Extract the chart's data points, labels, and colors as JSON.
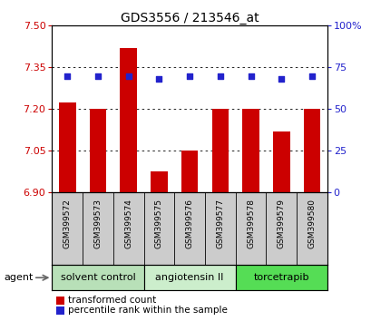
{
  "title": "GDS3556 / 213546_at",
  "samples": [
    "GSM399572",
    "GSM399573",
    "GSM399574",
    "GSM399575",
    "GSM399576",
    "GSM399577",
    "GSM399578",
    "GSM399579",
    "GSM399580"
  ],
  "transformed_counts": [
    7.225,
    7.2,
    7.42,
    6.975,
    7.05,
    7.2,
    7.2,
    7.12,
    7.2
  ],
  "percentile_ranks": [
    70,
    70,
    70,
    68,
    70,
    70,
    70,
    68,
    70
  ],
  "ylim": [
    6.9,
    7.5
  ],
  "yticks": [
    6.9,
    7.05,
    7.2,
    7.35,
    7.5
  ],
  "y2lim": [
    0,
    100
  ],
  "y2ticks": [
    0,
    25,
    50,
    75,
    100
  ],
  "y2ticklabels": [
    "0",
    "25",
    "50",
    "75",
    "100%"
  ],
  "bar_color": "#cc0000",
  "dot_color": "#2222cc",
  "groups": [
    {
      "label": "solvent control",
      "indices": [
        0,
        1,
        2
      ],
      "color": "#b8e0b8"
    },
    {
      "label": "angiotensin II",
      "indices": [
        3,
        4,
        5
      ],
      "color": "#cceecc"
    },
    {
      "label": "torcetrapib",
      "indices": [
        6,
        7,
        8
      ],
      "color": "#55dd55"
    }
  ],
  "agent_label": "agent",
  "legend_bar_label": "transformed count",
  "legend_dot_label": "percentile rank within the sample",
  "grid_color": "#000000",
  "background_color": "#ffffff",
  "plot_bg_color": "#ffffff",
  "tick_label_color_left": "#cc0000",
  "tick_label_color_right": "#2222cc",
  "bar_bottom": 6.9,
  "sample_label_bg": "#cccccc"
}
